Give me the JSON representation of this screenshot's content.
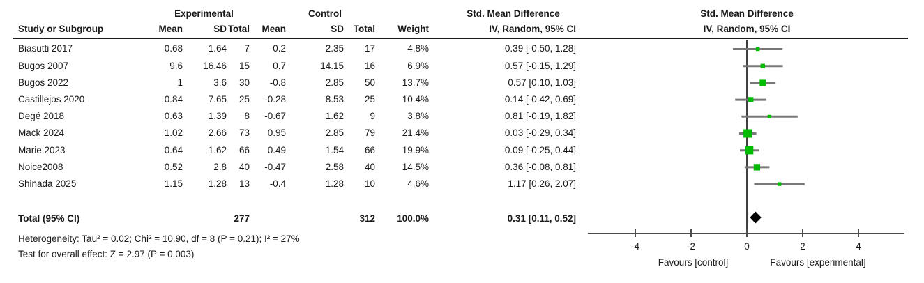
{
  "table": {
    "group_headers": {
      "experimental": "Experimental",
      "control": "Control",
      "smd": "Std. Mean Difference"
    },
    "columns": {
      "study": "Study or Subgroup",
      "mean": "Mean",
      "sd": "SD",
      "total": "Total",
      "weight": "Weight",
      "method": "IV, Random, 95% CI"
    }
  },
  "plot_header": {
    "title": "Std. Mean Difference",
    "subtitle": "IV, Random, 95% CI"
  },
  "studies": [
    {
      "name": "Biasutti 2017",
      "exp_mean": "0.68",
      "exp_sd": "1.64",
      "exp_total": "7",
      "ctrl_mean": "-0.2",
      "ctrl_sd": "2.35",
      "ctrl_total": "17",
      "weight": "4.8%",
      "ci_text": "0.39 [-0.50, 1.28]"
    },
    {
      "name": "Bugos 2007",
      "exp_mean": "9.6",
      "exp_sd": "16.46",
      "exp_total": "15",
      "ctrl_mean": "0.7",
      "ctrl_sd": "14.15",
      "ctrl_total": "16",
      "weight": "6.9%",
      "ci_text": "0.57 [-0.15, 1.29]"
    },
    {
      "name": "Bugos 2022",
      "exp_mean": "1",
      "exp_sd": "3.6",
      "exp_total": "30",
      "ctrl_mean": "-0.8",
      "ctrl_sd": "2.85",
      "ctrl_total": "50",
      "weight": "13.7%",
      "ci_text": "0.57 [0.10, 1.03]"
    },
    {
      "name": "Castillejos 2020",
      "exp_mean": "0.84",
      "exp_sd": "7.65",
      "exp_total": "25",
      "ctrl_mean": "-0.28",
      "ctrl_sd": "8.53",
      "ctrl_total": "25",
      "weight": "10.4%",
      "ci_text": "0.14 [-0.42, 0.69]"
    },
    {
      "name": "Degé 2018",
      "exp_mean": "0.63",
      "exp_sd": "1.39",
      "exp_total": "8",
      "ctrl_mean": "-0.67",
      "ctrl_sd": "1.62",
      "ctrl_total": "9",
      "weight": "3.8%",
      "ci_text": "0.81 [-0.19, 1.82]"
    },
    {
      "name": "Mack 2024",
      "exp_mean": "1.02",
      "exp_sd": "2.66",
      "exp_total": "73",
      "ctrl_mean": "0.95",
      "ctrl_sd": "2.85",
      "ctrl_total": "79",
      "weight": "21.4%",
      "ci_text": "0.03 [-0.29, 0.34]"
    },
    {
      "name": "Marie 2023",
      "exp_mean": "0.64",
      "exp_sd": "1.62",
      "exp_total": "66",
      "ctrl_mean": "0.49",
      "ctrl_sd": "1.54",
      "ctrl_total": "66",
      "weight": "19.9%",
      "ci_text": "0.09 [-0.25, 0.44]"
    },
    {
      "name": "Noice2008",
      "exp_mean": "0.52",
      "exp_sd": "2.8",
      "exp_total": "40",
      "ctrl_mean": "-0.47",
      "ctrl_sd": "2.58",
      "ctrl_total": "40",
      "weight": "14.5%",
      "ci_text": "0.36 [-0.08, 0.81]"
    },
    {
      "name": "Shinada 2025",
      "exp_mean": "1.15",
      "exp_sd": "1.28",
      "exp_total": "13",
      "ctrl_mean": "-0.4",
      "ctrl_sd": "1.28",
      "ctrl_total": "10",
      "weight": "4.6%",
      "ci_text": "1.17 [0.26, 2.07]"
    }
  ],
  "total_row": {
    "label": "Total (95% CI)",
    "exp_total": "277",
    "ctrl_total": "312",
    "weight": "100.0%",
    "ci_text": "0.31 [0.11, 0.52]"
  },
  "footnotes": {
    "heterogeneity": "Heterogeneity: Tau² = 0.02; Chi² = 10.90, df = 8 (P = 0.21); I² = 27%",
    "overall_effect": "Test for overall effect: Z = 2.97 (P = 0.003)"
  },
  "axis": {
    "tick_labels": [
      "-4",
      "-2",
      "0",
      "2",
      "4"
    ],
    "favours_left": "Favours [control]",
    "favours_right": "Favours [experimental]"
  },
  "colors": {
    "marker_green": "#00bc00",
    "ci_line_gray": "#787878",
    "diamond_black": "#000000",
    "axis_gray": "#4d4d4d",
    "zero_line_black": "#000000"
  },
  "chart_data": {
    "type": "scatter",
    "subtype": "forest_plot",
    "title": "Std. Mean Difference",
    "effect_measure": "IV, Random, 95% CI",
    "model": "Random effects",
    "studies": [
      {
        "name": "Biasutti 2017",
        "smd": 0.39,
        "ci": [
          -0.5,
          1.28
        ],
        "weight_pct": 4.8
      },
      {
        "name": "Bugos 2007",
        "smd": 0.57,
        "ci": [
          -0.15,
          1.29
        ],
        "weight_pct": 6.9
      },
      {
        "name": "Bugos 2022",
        "smd": 0.57,
        "ci": [
          0.1,
          1.03
        ],
        "weight_pct": 13.7
      },
      {
        "name": "Castillejos 2020",
        "smd": 0.14,
        "ci": [
          -0.42,
          0.69
        ],
        "weight_pct": 10.4
      },
      {
        "name": "Degé 2018",
        "smd": 0.81,
        "ci": [
          -0.19,
          1.82
        ],
        "weight_pct": 3.8
      },
      {
        "name": "Mack 2024",
        "smd": 0.03,
        "ci": [
          -0.29,
          0.34
        ],
        "weight_pct": 21.4
      },
      {
        "name": "Marie 2023",
        "smd": 0.09,
        "ci": [
          -0.25,
          0.44
        ],
        "weight_pct": 19.9
      },
      {
        "name": "Noice2008",
        "smd": 0.36,
        "ci": [
          -0.08,
          0.81
        ],
        "weight_pct": 14.5
      },
      {
        "name": "Shinada 2025",
        "smd": 1.17,
        "ci": [
          0.26,
          2.07
        ],
        "weight_pct": 4.6
      }
    ],
    "total": {
      "label": "Total (95% CI)",
      "smd": 0.31,
      "ci": [
        0.11,
        0.52
      ],
      "weight_pct": 100.0,
      "experimental_total": 277,
      "control_total": 312
    },
    "heterogeneity": {
      "tau2": 0.02,
      "chi2": 10.9,
      "df": 8,
      "p": 0.21,
      "i2_pct": 27
    },
    "overall_effect": {
      "z": 2.97,
      "p": 0.003
    },
    "x_axis": {
      "ticks": [
        -4,
        -2,
        0,
        2,
        4
      ],
      "range": [
        -5.7,
        5.7
      ],
      "label_left": "Favours [control]",
      "label_right": "Favours [experimental]",
      "grid": false
    }
  }
}
